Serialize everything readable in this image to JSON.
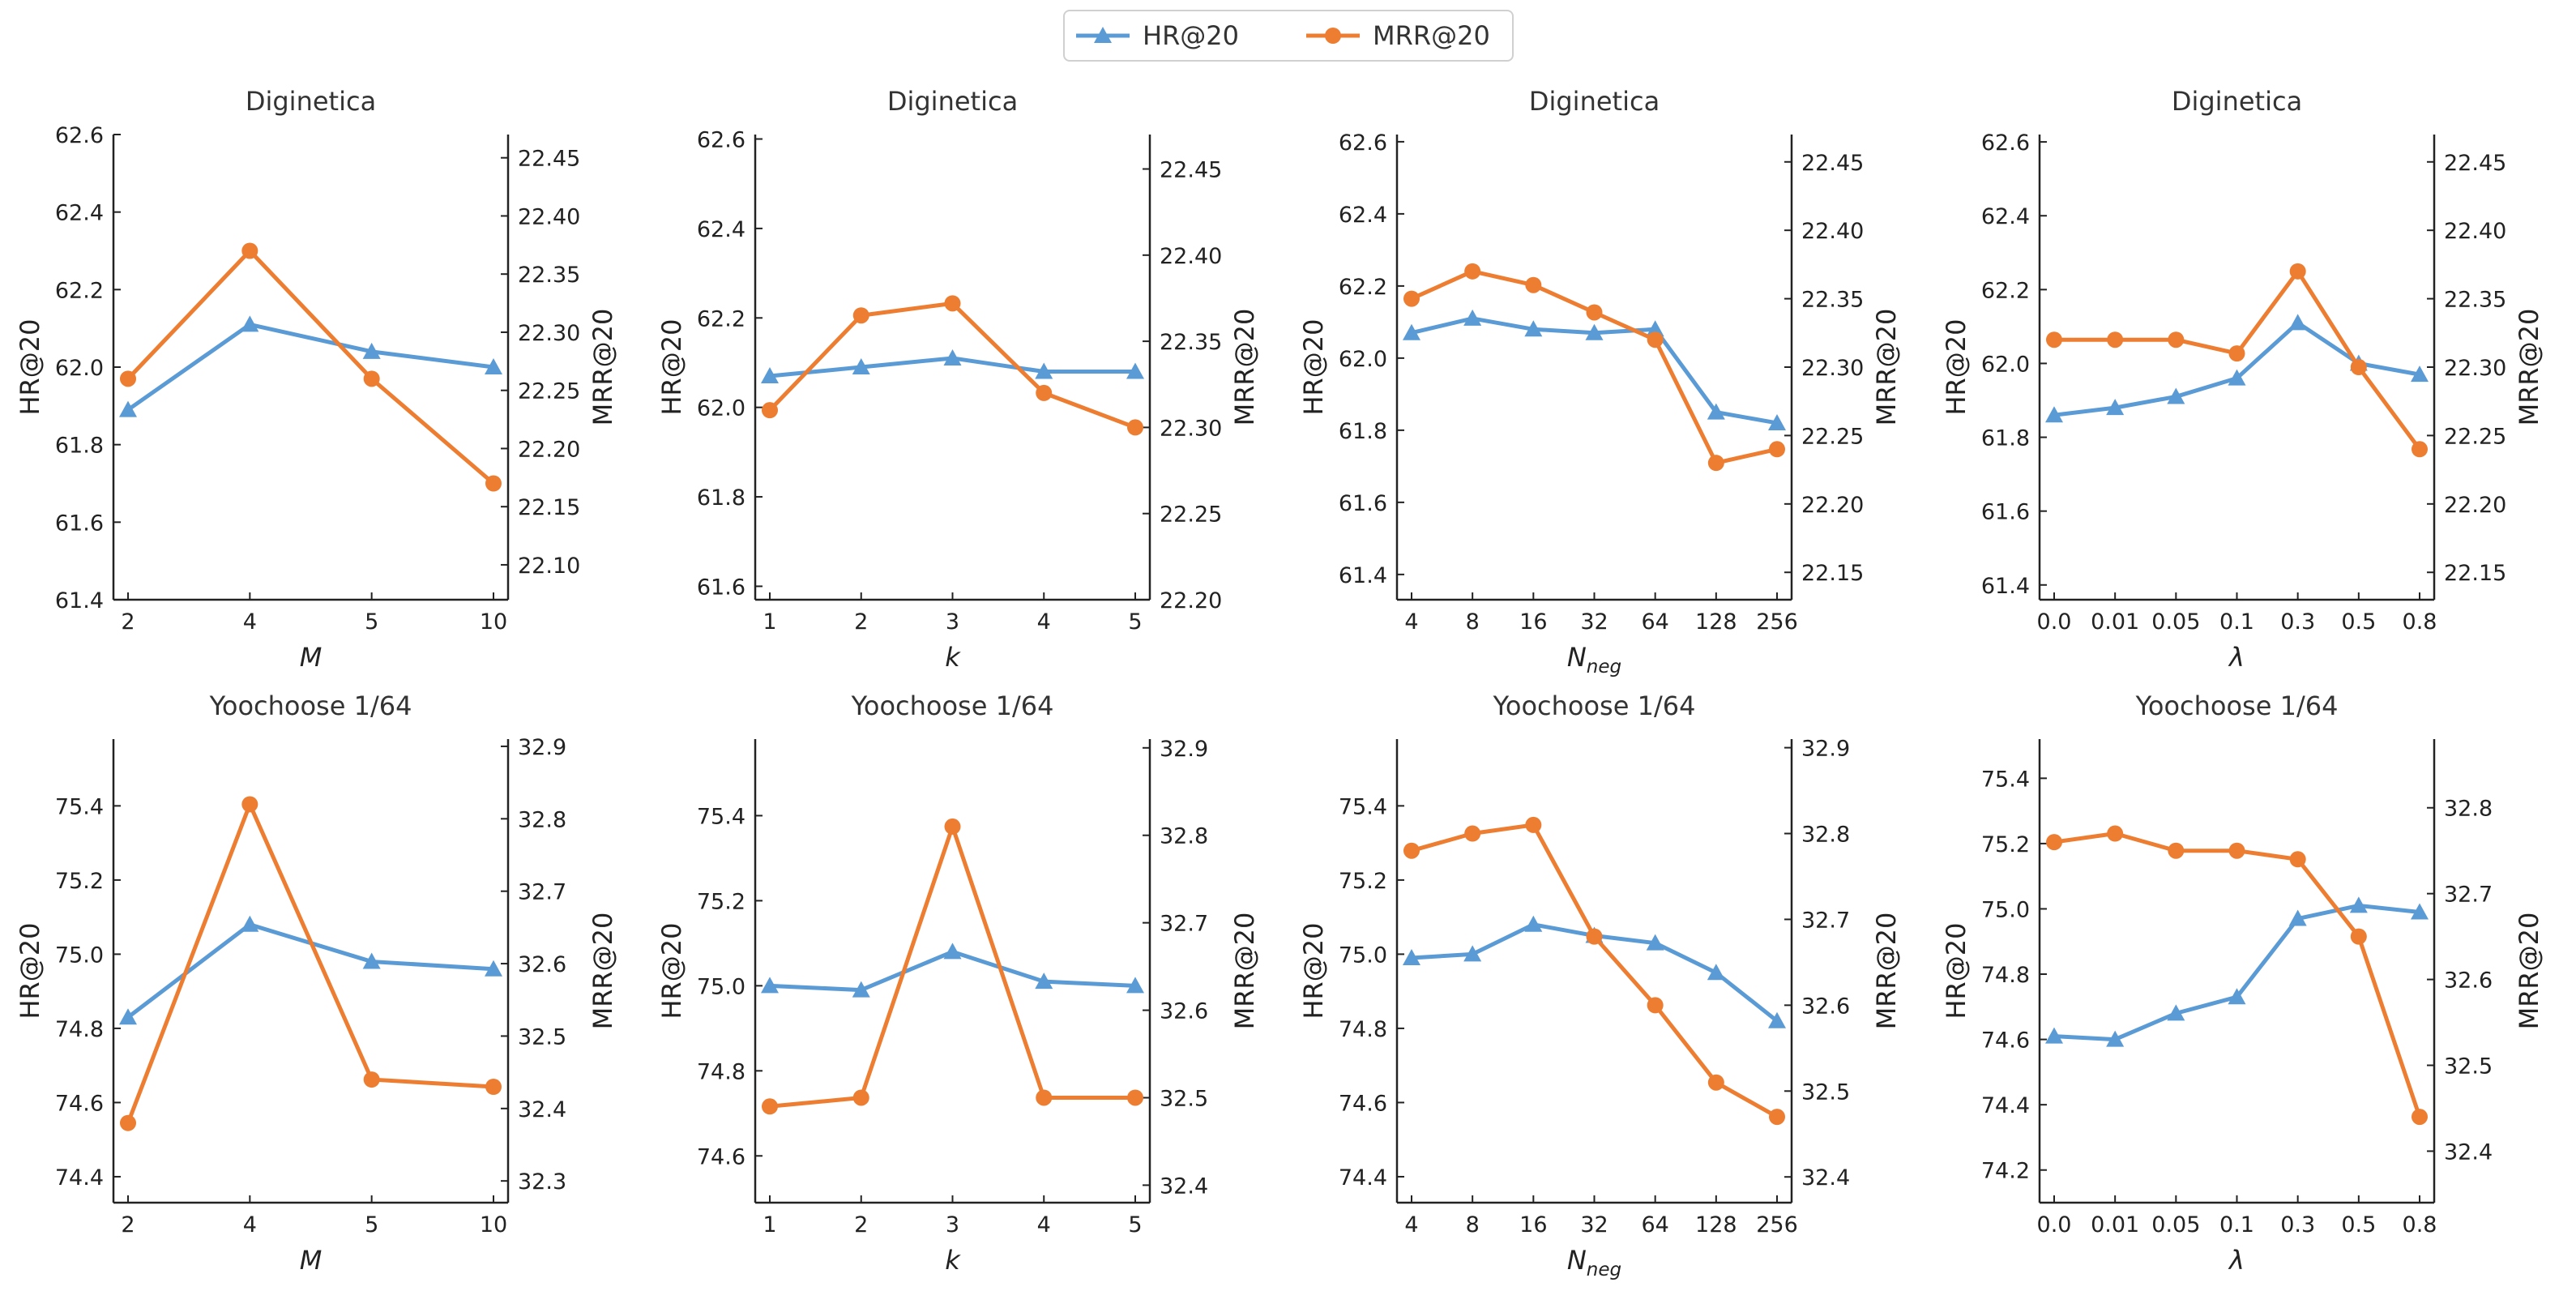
{
  "legend": {
    "hr_label": "HR@20",
    "mrr_label": "MRR@20",
    "position": "top-center"
  },
  "colors": {
    "hr": "#5b9bd5",
    "mrr": "#ed7d31"
  },
  "chart_data": [
    {
      "type": "line",
      "title": "Diginetica",
      "xlabel": "M",
      "xlabel_sub": "",
      "ylabel": "HR@20",
      "y2label": "MRR@20",
      "categories": [
        "2",
        "4",
        "5",
        "10"
      ],
      "series": [
        {
          "name": "HR@20",
          "axis": "left",
          "values": [
            61.89,
            62.11,
            62.04,
            62.0
          ]
        },
        {
          "name": "MRR@20",
          "axis": "right",
          "values": [
            22.26,
            22.37,
            22.26,
            22.17
          ]
        }
      ],
      "ylim": [
        61.4,
        62.6
      ],
      "y2lim": [
        22.07,
        22.47
      ],
      "yticks": [
        61.4,
        61.6,
        61.8,
        62.0,
        62.2,
        62.4,
        62.6
      ],
      "y2ticks": [
        22.1,
        22.15,
        22.2,
        22.25,
        22.3,
        22.35,
        22.4,
        22.45
      ],
      "ytick_decimals": 1,
      "y2tick_decimals": 2,
      "grid": false
    },
    {
      "type": "line",
      "title": "Diginetica",
      "xlabel": "k",
      "xlabel_sub": "",
      "ylabel": "HR@20",
      "y2label": "MRR@20",
      "categories": [
        "1",
        "2",
        "3",
        "4",
        "5"
      ],
      "series": [
        {
          "name": "HR@20",
          "axis": "left",
          "values": [
            62.07,
            62.09,
            62.11,
            62.08,
            62.08
          ]
        },
        {
          "name": "MRR@20",
          "axis": "right",
          "values": [
            22.31,
            22.365,
            22.372,
            22.32,
            22.3
          ]
        }
      ],
      "ylim": [
        61.57,
        62.61
      ],
      "y2lim": [
        22.2,
        22.47
      ],
      "yticks": [
        61.6,
        61.8,
        62.0,
        62.2,
        62.4,
        62.6
      ],
      "y2ticks": [
        22.2,
        22.25,
        22.3,
        22.35,
        22.4,
        22.45
      ],
      "ytick_decimals": 1,
      "y2tick_decimals": 2,
      "grid": false
    },
    {
      "type": "line",
      "title": "Diginetica",
      "xlabel": "N",
      "xlabel_sub": "neg",
      "ylabel": "HR@20",
      "y2label": "MRR@20",
      "categories": [
        "4",
        "8",
        "16",
        "32",
        "64",
        "128",
        "256"
      ],
      "series": [
        {
          "name": "HR@20",
          "axis": "left",
          "values": [
            62.07,
            62.11,
            62.08,
            62.07,
            62.08,
            61.85,
            61.82
          ]
        },
        {
          "name": "MRR@20",
          "axis": "right",
          "values": [
            22.35,
            22.37,
            22.36,
            22.34,
            22.32,
            22.23,
            22.24
          ]
        }
      ],
      "ylim": [
        61.33,
        62.62
      ],
      "y2lim": [
        22.13,
        22.47
      ],
      "yticks": [
        61.4,
        61.6,
        61.8,
        62.0,
        62.2,
        62.4,
        62.6
      ],
      "y2ticks": [
        22.15,
        22.2,
        22.25,
        22.3,
        22.35,
        22.4,
        22.45
      ],
      "ytick_decimals": 1,
      "y2tick_decimals": 2,
      "grid": false
    },
    {
      "type": "line",
      "title": "Diginetica",
      "xlabel": "λ",
      "xlabel_sub": "",
      "ylabel": "HR@20",
      "y2label": "MRR@20",
      "categories": [
        "0.0",
        "0.01",
        "0.05",
        "0.1",
        "0.3",
        "0.5",
        "0.8"
      ],
      "series": [
        {
          "name": "HR@20",
          "axis": "left",
          "values": [
            61.86,
            61.88,
            61.91,
            61.96,
            62.11,
            62.0,
            61.97
          ]
        },
        {
          "name": "MRR@20",
          "axis": "right",
          "values": [
            22.32,
            22.32,
            22.32,
            22.31,
            22.37,
            22.3,
            22.24
          ]
        }
      ],
      "ylim": [
        61.36,
        62.62
      ],
      "y2lim": [
        22.13,
        22.47
      ],
      "yticks": [
        61.4,
        61.6,
        61.8,
        62.0,
        62.2,
        62.4,
        62.6
      ],
      "y2ticks": [
        22.15,
        22.2,
        22.25,
        22.3,
        22.35,
        22.4,
        22.45
      ],
      "ytick_decimals": 1,
      "y2tick_decimals": 2,
      "grid": false
    },
    {
      "type": "line",
      "title": "Yoochoose 1/64",
      "xlabel": "M",
      "xlabel_sub": "",
      "ylabel": "HR@20",
      "y2label": "MRR@20",
      "categories": [
        "2",
        "4",
        "5",
        "10"
      ],
      "series": [
        {
          "name": "HR@20",
          "axis": "left",
          "values": [
            74.83,
            75.08,
            74.98,
            74.96
          ]
        },
        {
          "name": "MRR@20",
          "axis": "right",
          "values": [
            32.38,
            32.82,
            32.44,
            32.43
          ]
        }
      ],
      "ylim": [
        74.33,
        75.58
      ],
      "y2lim": [
        32.27,
        32.91
      ],
      "yticks": [
        74.4,
        74.6,
        74.8,
        75.0,
        75.2,
        75.4
      ],
      "y2ticks": [
        32.3,
        32.4,
        32.5,
        32.6,
        32.7,
        32.8,
        32.9
      ],
      "ytick_decimals": 1,
      "y2tick_decimals": 1,
      "grid": false
    },
    {
      "type": "line",
      "title": "Yoochoose 1/64",
      "xlabel": "k",
      "xlabel_sub": "",
      "ylabel": "HR@20",
      "y2label": "MRR@20",
      "categories": [
        "1",
        "2",
        "3",
        "4",
        "5"
      ],
      "series": [
        {
          "name": "HR@20",
          "axis": "left",
          "values": [
            75.0,
            74.99,
            75.08,
            75.01,
            75.0
          ]
        },
        {
          "name": "MRR@20",
          "axis": "right",
          "values": [
            32.49,
            32.5,
            32.81,
            32.5,
            32.5
          ]
        }
      ],
      "ylim": [
        74.49,
        75.58
      ],
      "y2lim": [
        32.38,
        32.91
      ],
      "yticks": [
        74.6,
        74.8,
        75.0,
        75.2,
        75.4
      ],
      "y2ticks": [
        32.4,
        32.5,
        32.6,
        32.7,
        32.8,
        32.9
      ],
      "ytick_decimals": 1,
      "y2tick_decimals": 1,
      "grid": false
    },
    {
      "type": "line",
      "title": "Yoochoose 1/64",
      "xlabel": "N",
      "xlabel_sub": "neg",
      "ylabel": "HR@20",
      "y2label": "MRR@20",
      "categories": [
        "4",
        "8",
        "16",
        "32",
        "64",
        "128",
        "256"
      ],
      "series": [
        {
          "name": "HR@20",
          "axis": "left",
          "values": [
            74.99,
            75.0,
            75.08,
            75.05,
            75.03,
            74.95,
            74.82
          ]
        },
        {
          "name": "MRR@20",
          "axis": "right",
          "values": [
            32.78,
            32.8,
            32.81,
            32.68,
            32.6,
            32.51,
            32.47
          ]
        }
      ],
      "ylim": [
        74.33,
        75.58
      ],
      "y2lim": [
        32.37,
        32.91
      ],
      "yticks": [
        74.4,
        74.6,
        74.8,
        75.0,
        75.2,
        75.4
      ],
      "y2ticks": [
        32.4,
        32.5,
        32.6,
        32.7,
        32.8,
        32.9
      ],
      "ytick_decimals": 1,
      "y2tick_decimals": 1,
      "grid": false
    },
    {
      "type": "line",
      "title": "Yoochoose 1/64",
      "xlabel": "λ",
      "xlabel_sub": "",
      "ylabel": "HR@20",
      "y2label": "MRR@20",
      "categories": [
        "0.0",
        "0.01",
        "0.05",
        "0.1",
        "0.3",
        "0.5",
        "0.8"
      ],
      "series": [
        {
          "name": "HR@20",
          "axis": "left",
          "values": [
            74.61,
            74.6,
            74.68,
            74.73,
            74.97,
            75.01,
            74.99
          ]
        },
        {
          "name": "MRR@20",
          "axis": "right",
          "values": [
            32.76,
            32.77,
            32.75,
            32.75,
            32.74,
            32.65,
            32.44
          ]
        }
      ],
      "ylim": [
        74.1,
        75.52
      ],
      "y2lim": [
        32.34,
        32.88
      ],
      "yticks": [
        74.2,
        74.4,
        74.6,
        74.8,
        75.0,
        75.2,
        75.4
      ],
      "y2ticks": [
        32.4,
        32.5,
        32.6,
        32.7,
        32.8
      ],
      "ytick_decimals": 1,
      "y2tick_decimals": 1,
      "grid": false
    }
  ]
}
